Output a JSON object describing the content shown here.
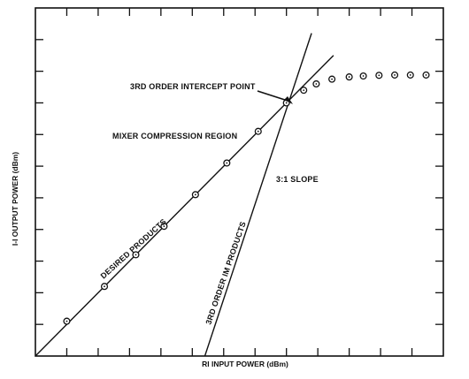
{
  "chart_data": {
    "type": "line",
    "title": "",
    "xlabel": "RI INPUT POWER (dBm)",
    "ylabel": "I-I OUTPUT POWER (dBm)",
    "xlim": [
      0,
      13
    ],
    "ylim": [
      0,
      11
    ],
    "grid": false,
    "series": [
      {
        "name": "DESIRED PRODUCTS",
        "style": "line",
        "x": [
          0,
          9.5
        ],
        "y": [
          0,
          9.5
        ]
      },
      {
        "name": "3RD ORDER IM PRODUCTS",
        "style": "line",
        "x": [
          5.4,
          8.8
        ],
        "y": [
          0,
          10.2
        ]
      },
      {
        "name": "",
        "style": "markers",
        "marker": "circle-dot",
        "x": [
          1.0,
          2.2,
          3.2,
          4.1,
          5.1,
          6.1,
          7.1,
          8.0,
          8.55,
          8.95,
          9.45,
          10.0,
          10.45,
          10.95,
          11.45,
          11.95,
          12.45
        ],
        "y": [
          1.1,
          2.2,
          3.2,
          4.1,
          5.1,
          6.1,
          7.1,
          8.0,
          8.4,
          8.6,
          8.75,
          8.82,
          8.85,
          8.87,
          8.88,
          8.88,
          8.88
        ]
      }
    ],
    "annotations": [
      {
        "text": "3RD ORDER INTERCEPT POINT",
        "x": 8.0,
        "y": 8.0
      },
      {
        "text": "MIXER COMPRESSION REGION",
        "x": 8.0,
        "y": 8.0
      },
      {
        "text": "3:1 SLOPE",
        "x": 8.0,
        "y": 8.0
      },
      {
        "text": "DESIRED PRODUCTS",
        "x": 3.0,
        "y": 3.5
      },
      {
        "text": "3RD ORDER IM PRODUCTS",
        "x": 6.5,
        "y": 3.5
      }
    ]
  }
}
